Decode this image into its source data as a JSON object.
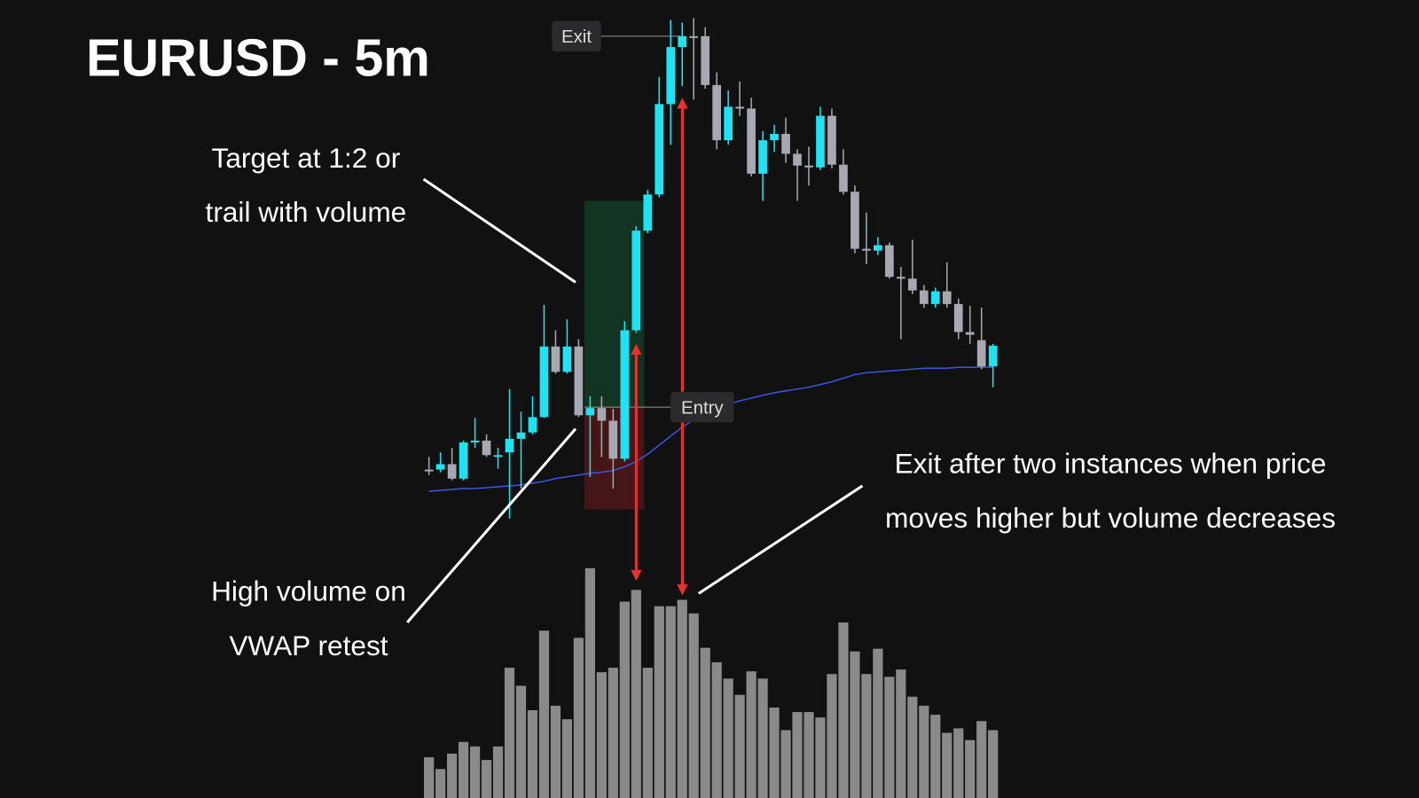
{
  "chart_data": {
    "type": "candlestick",
    "title": "EURUSD - 5m",
    "open": [
      81,
      81,
      87,
      71,
      111,
      113,
      97,
      100,
      115,
      122,
      139,
      217,
      189,
      217,
      141,
      149,
      135,
      93,
      235,
      345,
      385,
      485,
      548,
      560,
      560,
      506,
      445,
      482,
      480,
      408,
      445,
      452,
      430,
      417,
      415,
      472,
      418,
      388,
      325,
      323,
      329,
      294,
      292,
      279,
      264,
      278,
      264,
      233,
      224,
      195
    ],
    "high": [
      95,
      100,
      105,
      113,
      138,
      120,
      105,
      170,
      145,
      162,
      263,
      235,
      247,
      225,
      162,
      162,
      148,
      245,
      350,
      390,
      515,
      578,
      575,
      580,
      570,
      520,
      500,
      510,
      492,
      455,
      462,
      470,
      435,
      438,
      482,
      480,
      435,
      395,
      365,
      338,
      332,
      305,
      335,
      285,
      282,
      310,
      270,
      262,
      260,
      220
    ],
    "low": [
      75,
      78,
      69,
      69,
      105,
      95,
      82,
      27,
      60,
      120,
      138,
      187,
      187,
      139,
      73,
      95,
      60,
      90,
      232,
      342,
      382,
      440,
      505,
      490,
      502,
      435,
      440,
      472,
      405,
      378,
      432,
      420,
      378,
      395,
      412,
      414,
      385,
      320,
      308,
      318,
      292,
      225,
      275,
      260,
      260,
      260,
      225,
      220,
      192,
      172
    ],
    "close": [
      79,
      87,
      71,
      111,
      113,
      97,
      97,
      115,
      122,
      139,
      217,
      189,
      217,
      141,
      149,
      135,
      93,
      235,
      345,
      385,
      485,
      548,
      560,
      559,
      506,
      445,
      482,
      480,
      408,
      445,
      452,
      430,
      417,
      415,
      472,
      418,
      388,
      325,
      323,
      329,
      294,
      292,
      279,
      264,
      278,
      264,
      233,
      230,
      195,
      218
    ],
    "volume": [
      45,
      32,
      49,
      62,
      57,
      42,
      57,
      144,
      124,
      97,
      185,
      102,
      87,
      177,
      254,
      139,
      144,
      217,
      230,
      144,
      212,
      212,
      219,
      204,
      166,
      150,
      132,
      114,
      140,
      132,
      100,
      75,
      95,
      95,
      89,
      137,
      194,
      162,
      137,
      165,
      134,
      142,
      112,
      102,
      92,
      72,
      77,
      64,
      85,
      75
    ],
    "vwap": [
      57,
      58,
      59,
      60,
      60,
      61,
      62,
      63,
      64,
      66,
      68,
      71,
      73,
      75,
      77,
      78,
      80,
      84,
      90,
      98,
      108,
      118,
      128,
      136,
      142,
      148,
      153,
      157,
      160,
      163,
      166,
      168,
      170,
      172,
      175,
      178,
      182,
      186,
      188,
      189,
      190,
      191,
      192,
      193,
      193,
      193,
      194,
      194,
      194,
      194
    ],
    "up_color": "#1fe3f2",
    "down_color": "#a7a8b2",
    "volume_color": "#8a8a8a",
    "vwap_color": "#3b55db",
    "ylim": [
      0,
      600
    ],
    "volume_ylim": [
      0,
      300
    ],
    "entry": {
      "label": "Entry",
      "value": 150
    },
    "exit": {
      "label": "Exit",
      "value": 560
    },
    "target": 378,
    "stop": 37,
    "annotations": [
      {
        "lines": [
          "Target at 1:2 or",
          "trail with volume"
        ]
      },
      {
        "lines": [
          "High volume on",
          "VWAP retest"
        ]
      },
      {
        "lines": [
          "Exit after two instances when price",
          "moves higher but volume decreases"
        ]
      }
    ]
  }
}
